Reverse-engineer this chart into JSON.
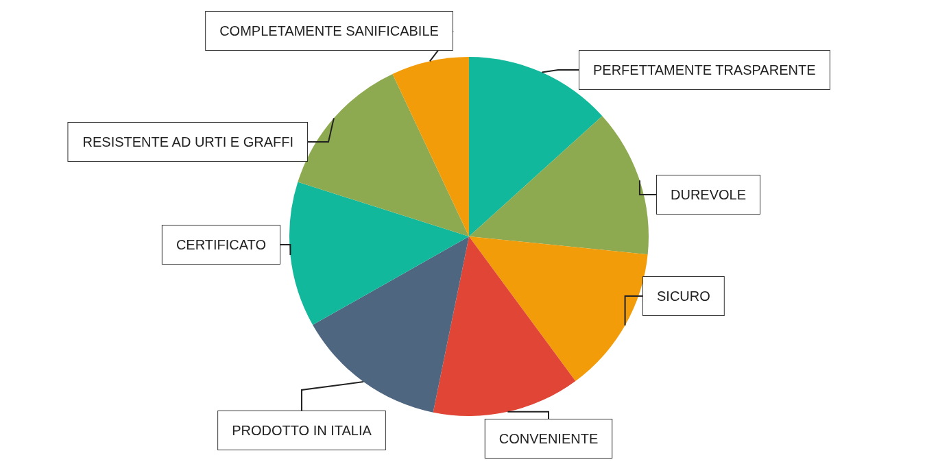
{
  "chart_data": {
    "type": "pie",
    "categories": [
      "PERFETTAMENTE TRASPARENTE",
      "DUREVOLE",
      "SICURO",
      "CONVENIENTE",
      "PRODOTTO IN ITALIA",
      "CERTIFICATO",
      "RESISTENTE AD URTI E GRAFFI",
      "COMPLETAMENTE SANIFICABILE"
    ],
    "values": [
      13.3,
      13.3,
      13.3,
      13.3,
      13.6,
      13.1,
      13.1,
      7.0
    ],
    "colors": [
      "#12b89b",
      "#8eaa51",
      "#f39c09",
      "#e04535",
      "#4f6680",
      "#12b89b",
      "#8eaa51",
      "#f39c09"
    ]
  }
}
